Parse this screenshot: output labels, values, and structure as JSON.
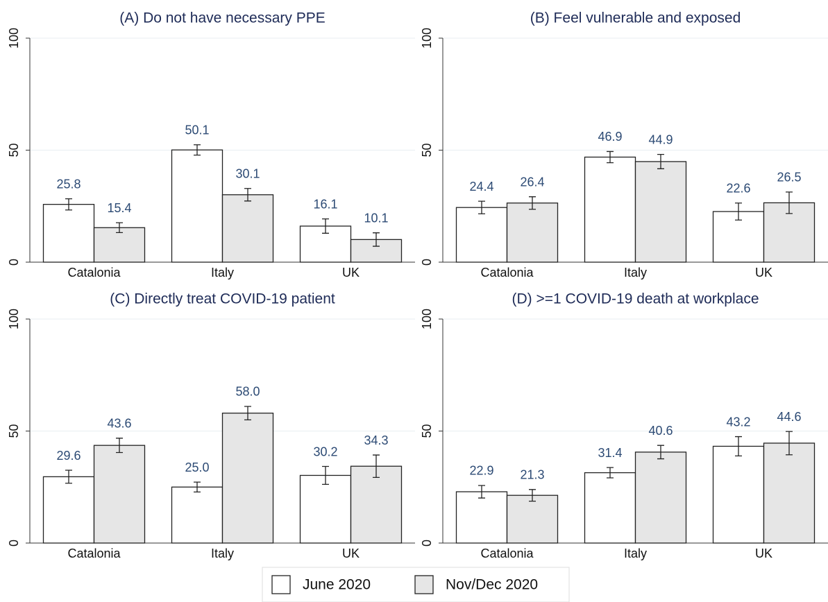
{
  "chart_data": [
    {
      "type": "bar",
      "title": "(A) Do not have necessary PPE",
      "categories": [
        "Catalonia",
        "Italy",
        "UK"
      ],
      "series": [
        {
          "name": "June 2020",
          "color": "#ffffff",
          "values": [
            25.8,
            50.1,
            16.1
          ],
          "errors": [
            2.5,
            2.3,
            3.2
          ],
          "value_labels": [
            "25.8",
            "50.1",
            "16.1"
          ]
        },
        {
          "name": "Nov/Dec 2020",
          "color": "#e6e6e6",
          "values": [
            15.4,
            30.1,
            10.1
          ],
          "errors": [
            2.2,
            2.8,
            3.0
          ],
          "value_labels": [
            "15.4",
            "30.1",
            "10.1"
          ]
        }
      ],
      "ylim": [
        0,
        100
      ],
      "yticks": [
        0,
        50,
        100
      ],
      "grid": true
    },
    {
      "type": "bar",
      "title": "(B) Feel vulnerable and exposed",
      "categories": [
        "Catalonia",
        "Italy",
        "UK"
      ],
      "series": [
        {
          "color": "#ffffff",
          "values": [
            24.4,
            46.9,
            22.6
          ],
          "errors": [
            2.8,
            2.5,
            3.8
          ],
          "value_labels": [
            "24.4",
            "46.9",
            "22.6"
          ]
        },
        {
          "color": "#e6e6e6",
          "values": [
            26.4,
            44.9,
            26.5
          ],
          "errors": [
            2.8,
            3.2,
            4.8
          ],
          "value_labels": [
            "26.4",
            "44.9",
            "26.5"
          ]
        }
      ],
      "ylim": [
        0,
        100
      ],
      "yticks": [
        0,
        50,
        100
      ],
      "grid": true
    },
    {
      "type": "bar",
      "title": "(C) Directly treat COVID-19 patient",
      "categories": [
        "Catalonia",
        "Italy",
        "UK"
      ],
      "series": [
        {
          "color": "#ffffff",
          "values": [
            29.6,
            25.0,
            30.2
          ],
          "errors": [
            2.9,
            2.2,
            4.0
          ],
          "value_labels": [
            "29.6",
            "25.0",
            "30.2"
          ]
        },
        {
          "color": "#e6e6e6",
          "values": [
            43.6,
            58.0,
            34.3
          ],
          "errors": [
            3.2,
            3.0,
            5.0
          ],
          "value_labels": [
            "43.6",
            "58.0",
            "34.3"
          ]
        }
      ],
      "ylim": [
        0,
        100
      ],
      "yticks": [
        0,
        50,
        100
      ],
      "grid": true
    },
    {
      "type": "bar",
      "title": "(D) >=1 COVID-19 death at workplace",
      "categories": [
        "Catalonia",
        "Italy",
        "UK"
      ],
      "series": [
        {
          "color": "#ffffff",
          "values": [
            22.9,
            31.4,
            43.2
          ],
          "errors": [
            2.8,
            2.3,
            4.3
          ],
          "value_labels": [
            "22.9",
            "31.4",
            "43.2"
          ]
        },
        {
          "color": "#e6e6e6",
          "values": [
            21.3,
            40.6,
            44.6
          ],
          "errors": [
            2.6,
            3.0,
            5.2
          ],
          "value_labels": [
            "21.3",
            "40.6",
            "44.6"
          ]
        }
      ],
      "ylim": [
        0,
        100
      ],
      "yticks": [
        0,
        50,
        100
      ],
      "grid": true
    }
  ]
}
